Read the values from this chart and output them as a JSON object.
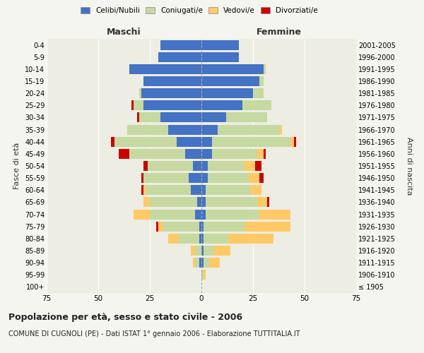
{
  "age_groups": [
    "100+",
    "95-99",
    "90-94",
    "85-89",
    "80-84",
    "75-79",
    "70-74",
    "65-69",
    "60-64",
    "55-59",
    "50-54",
    "45-49",
    "40-44",
    "35-39",
    "30-34",
    "25-29",
    "20-24",
    "15-19",
    "10-14",
    "5-9",
    "0-4"
  ],
  "birth_years": [
    "≤ 1905",
    "1906-1910",
    "1911-1915",
    "1916-1920",
    "1921-1925",
    "1926-1930",
    "1931-1935",
    "1936-1940",
    "1941-1945",
    "1946-1950",
    "1951-1955",
    "1956-1960",
    "1961-1965",
    "1966-1970",
    "1971-1975",
    "1976-1980",
    "1981-1985",
    "1986-1990",
    "1991-1995",
    "1996-2000",
    "2001-2005"
  ],
  "males": {
    "celibe": [
      0,
      0,
      1,
      0,
      1,
      1,
      3,
      2,
      5,
      6,
      4,
      8,
      12,
      16,
      20,
      28,
      29,
      28,
      35,
      21,
      20
    ],
    "coniugato": [
      0,
      0,
      2,
      3,
      10,
      18,
      22,
      23,
      22,
      22,
      22,
      27,
      30,
      20,
      10,
      5,
      1,
      0,
      0,
      0,
      0
    ],
    "vedovo": [
      0,
      0,
      1,
      2,
      5,
      2,
      8,
      3,
      1,
      0,
      0,
      0,
      0,
      0,
      0,
      0,
      0,
      0,
      0,
      0,
      0
    ],
    "divorziato": [
      0,
      0,
      0,
      0,
      0,
      1,
      0,
      0,
      1,
      1,
      2,
      5,
      2,
      0,
      1,
      1,
      0,
      0,
      0,
      0,
      0
    ]
  },
  "females": {
    "nubile": [
      0,
      0,
      1,
      1,
      1,
      1,
      2,
      2,
      2,
      3,
      3,
      5,
      5,
      8,
      12,
      20,
      25,
      28,
      30,
      18,
      18
    ],
    "coniugata": [
      0,
      1,
      3,
      5,
      12,
      20,
      26,
      25,
      22,
      20,
      18,
      22,
      38,
      30,
      20,
      14,
      5,
      2,
      1,
      0,
      0
    ],
    "vedova": [
      0,
      1,
      5,
      8,
      22,
      22,
      15,
      5,
      5,
      5,
      5,
      3,
      2,
      1,
      0,
      0,
      0,
      0,
      0,
      0,
      0
    ],
    "divorziata": [
      0,
      0,
      0,
      0,
      0,
      0,
      0,
      1,
      0,
      2,
      3,
      1,
      1,
      0,
      0,
      0,
      0,
      0,
      0,
      0,
      0
    ]
  },
  "colors": {
    "celibe_nubile": "#4472c4",
    "coniugato_a": "#c5d9a0",
    "vedovo_a": "#ffc966",
    "divorziato_a": "#cc0000"
  },
  "xlim": 75,
  "title": "Popolazione per età, sesso e stato civile - 2006",
  "subtitle": "COMUNE DI CUGNOLI (PE) - Dati ISTAT 1° gennaio 2006 - Elaborazione TUTTITALIA.IT",
  "ylabel_left": "Fasce di età",
  "ylabel_right": "Anni di nascita",
  "xlabel_left": "Maschi",
  "xlabel_right": "Femmine",
  "legend_labels": [
    "Celibi/Nubili",
    "Coniugati/e",
    "Vedovi/e",
    "Divorziati/e"
  ],
  "bg_color": "#f5f5f0",
  "plot_bg": "#ededE3"
}
